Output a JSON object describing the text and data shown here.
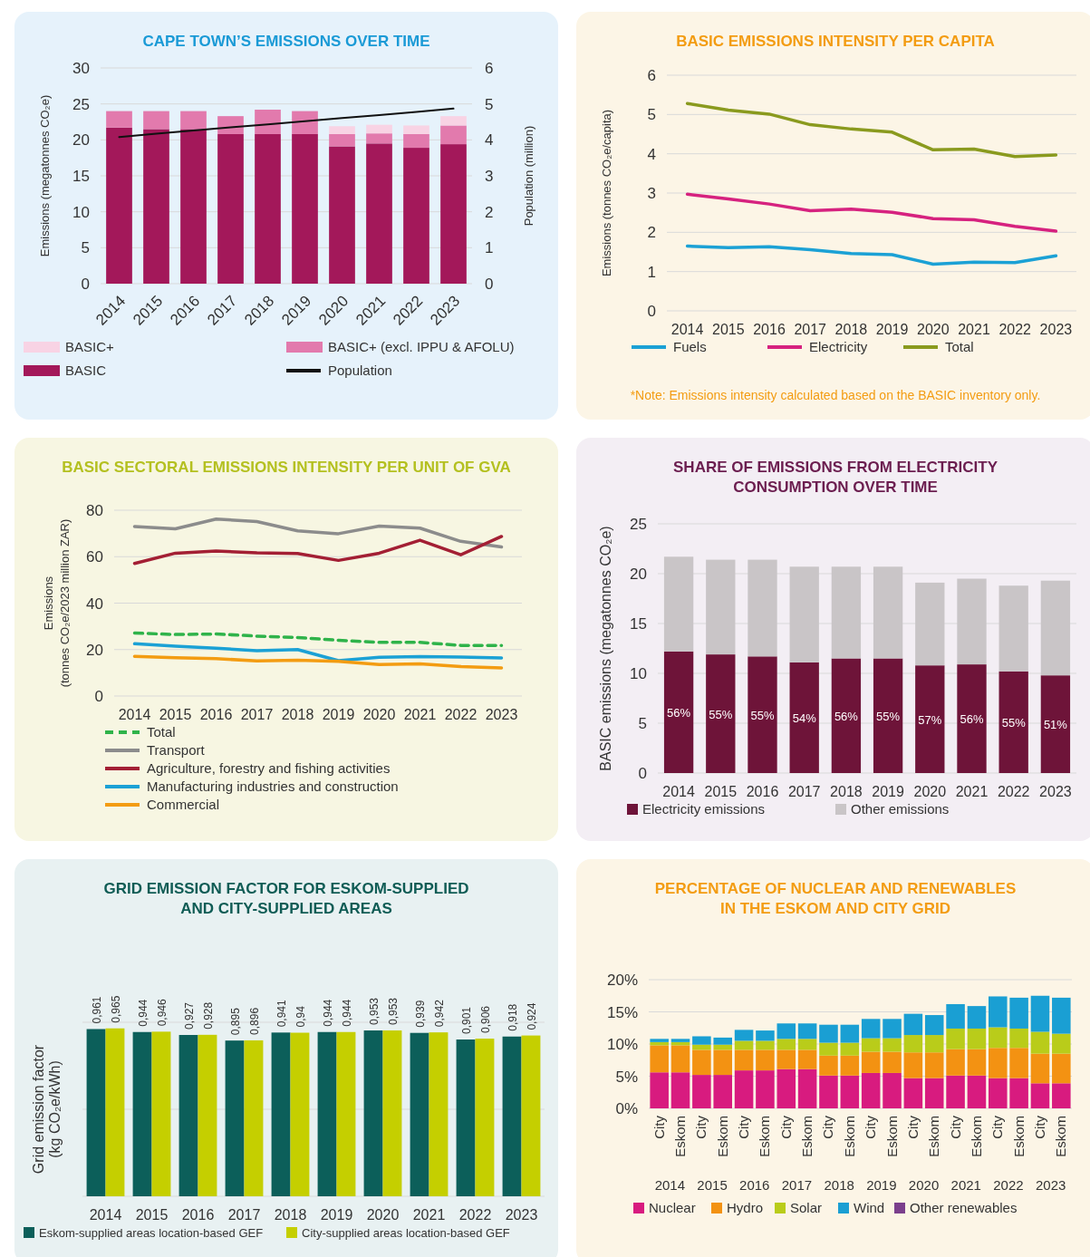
{
  "chart_data": [
    {
      "type": "bar",
      "title": "CAPE TOWN’S EMISSIONS OVER TIME",
      "ylabel": "Emissions (megatonnes CO₂e)",
      "y2label": "Population (million)",
      "categories": [
        "2014",
        "2015",
        "2016",
        "2017",
        "2018",
        "2019",
        "2020",
        "2021",
        "2022",
        "2023"
      ],
      "stacked": true,
      "ylim": [
        0,
        30
      ],
      "yticks": [
        0,
        5,
        10,
        15,
        20,
        25,
        30
      ],
      "y2lim": [
        0,
        6
      ],
      "y2ticks": [
        0,
        1,
        2,
        3,
        4,
        5,
        6
      ],
      "grid": "y",
      "legend": "bottom",
      "series": [
        {
          "name": "BASIC",
          "color": "#a3185a",
          "values": [
            21.7,
            21.5,
            21.5,
            20.8,
            20.8,
            20.8,
            19.1,
            19.5,
            18.9,
            19.4
          ]
        },
        {
          "name": "BASIC+ (excl. IPPU & AFOLU)",
          "color": "#e27aad",
          "values": [
            2.3,
            2.5,
            2.5,
            2.5,
            3.4,
            3.2,
            1.7,
            1.4,
            1.9,
            2.6
          ]
        },
        {
          "name": "BASIC+",
          "color": "#f8d3e4",
          "values": [
            null,
            null,
            null,
            null,
            null,
            null,
            1.1,
            1.2,
            1.2,
            1.3
          ]
        },
        {
          "name": "Population",
          "type": "line",
          "axis": "y2",
          "color": "#111111",
          "values": [
            4.08,
            4.17,
            4.26,
            4.35,
            4.43,
            4.52,
            4.61,
            4.69,
            4.78,
            4.87
          ]
        }
      ]
    },
    {
      "type": "line",
      "title": "BASIC EMISSIONS INTENSITY PER CAPITA",
      "ylabel": "Emissions (tonnes CO₂e/capita)",
      "categories": [
        "2014",
        "2015",
        "2016",
        "2017",
        "2018",
        "2019",
        "2020",
        "2021",
        "2022",
        "2023"
      ],
      "ylim": [
        0,
        6
      ],
      "yticks": [
        0,
        1,
        2,
        3,
        4,
        5,
        6
      ],
      "grid": "y",
      "legend": "bottom",
      "annotations": [
        "*Note: Emissions intensity calculated based on the BASIC inventory only."
      ],
      "series": [
        {
          "name": "Fuels",
          "color": "#1ba1d5",
          "values": [
            1.65,
            1.61,
            1.63,
            1.56,
            1.46,
            1.43,
            1.19,
            1.24,
            1.23,
            1.4
          ]
        },
        {
          "name": "Electricity",
          "color": "#d6227f",
          "values": [
            2.97,
            2.85,
            2.72,
            2.55,
            2.59,
            2.51,
            2.35,
            2.32,
            2.15,
            2.03
          ]
        },
        {
          "name": "Total",
          "color": "#8a9a1e",
          "values": [
            5.28,
            5.11,
            5.01,
            4.74,
            4.63,
            4.55,
            4.1,
            4.12,
            3.93,
            3.97
          ]
        }
      ]
    },
    {
      "type": "line",
      "title": "BASIC SECTORAL EMISSIONS INTENSITY PER UNIT OF GVA",
      "ylabel": "Emissions (tonnes CO₂e/2023 million ZAR)",
      "categories": [
        "2014",
        "2015",
        "2016",
        "2017",
        "2018",
        "2019",
        "2020",
        "2021",
        "2022",
        "2023"
      ],
      "ylim": [
        0,
        80
      ],
      "yticks": [
        0,
        20,
        40,
        60,
        80
      ],
      "grid": "y",
      "legend": "bottom",
      "series": [
        {
          "name": "Total",
          "color": "#2fb34a",
          "line_style": "dashed",
          "values": [
            27.1,
            26.5,
            26.7,
            25.8,
            25.2,
            24.0,
            23.1,
            23.1,
            21.8,
            21.8
          ]
        },
        {
          "name": "Transport",
          "color": "#8c8c8c",
          "values": [
            73.0,
            72.0,
            76.2,
            75.1,
            71.1,
            69.9,
            73.2,
            72.3,
            66.6,
            64.2
          ]
        },
        {
          "name": "Agriculture, forestry and fishing activities",
          "color": "#a31f34",
          "values": [
            57.1,
            61.5,
            62.4,
            61.7,
            61.4,
            58.4,
            61.5,
            67.1,
            60.8,
            68.7
          ]
        },
        {
          "name": "Manufacturing industries and construction",
          "color": "#1ba1d5",
          "values": [
            22.5,
            21.5,
            20.6,
            19.5,
            20.0,
            15.2,
            16.7,
            17.0,
            16.8,
            16.4
          ]
        },
        {
          "name": "Commercial",
          "color": "#f39c12",
          "values": [
            17.1,
            16.5,
            16.1,
            15.1,
            15.4,
            14.9,
            13.6,
            13.9,
            12.7,
            12.1
          ]
        }
      ]
    },
    {
      "type": "bar",
      "title": "SHARE OF EMISSIONS FROM ELECTRICITY CONSUMPTION OVER TIME",
      "ylabel": "BASIC emissions (megatonnes CO₂e)",
      "categories": [
        "2014",
        "2015",
        "2016",
        "2017",
        "2018",
        "2019",
        "2020",
        "2021",
        "2022",
        "2023"
      ],
      "stacked": true,
      "ylim": [
        0,
        25
      ],
      "yticks": [
        0,
        5,
        10,
        15,
        20,
        25
      ],
      "grid": "y",
      "legend": "bottom",
      "annotations": [
        "56%",
        "55%",
        "55%",
        "54%",
        "56%",
        "55%",
        "57%",
        "56%",
        "55%",
        "51%"
      ],
      "series": [
        {
          "name": "Electricity emissions",
          "color": "#6e1439",
          "values": [
            12.2,
            11.9,
            11.7,
            11.1,
            11.5,
            11.5,
            10.8,
            10.9,
            10.2,
            9.8
          ]
        },
        {
          "name": "Other emissions",
          "color": "#c9c5c7",
          "values": [
            9.5,
            9.5,
            9.7,
            9.6,
            9.2,
            9.2,
            8.3,
            8.6,
            8.6,
            9.5
          ]
        }
      ]
    },
    {
      "type": "bar",
      "title": "GRID EMISSION FACTOR FOR ESKOM-SUPPLIED AND CITY-SUPPLIED AREAS",
      "ylabel": "Grid emission factor (kg CO₂e/kWh)",
      "categories": [
        "2014",
        "2015",
        "2016",
        "2017",
        "2018",
        "2019",
        "2020",
        "2021",
        "2022",
        "2023"
      ],
      "ylim": [
        0,
        1
      ],
      "yticks": [
        {
          "value": 0,
          "label": null
        },
        {
          "value": 0.5,
          "label": null
        },
        {
          "value": 1,
          "label": null
        }
      ],
      "tick_labels": "x",
      "grid": "y",
      "legend": "bottom",
      "series": [
        {
          "name": "Eskom-supplied areas location-based GEF",
          "color": "#0c5f5a",
          "values": [
            0.961,
            0.944,
            0.927,
            0.895,
            0.941,
            0.944,
            0.953,
            0.939,
            0.901,
            0.918
          ],
          "value_labels": [
            "0,961",
            "0,944",
            "0,927",
            "0,895",
            "0,941",
            "0,944",
            "0,953",
            "0,939",
            "0,901",
            "0,918"
          ]
        },
        {
          "name": "City-supplied areas location-based GEF",
          "color": "#c5cf00",
          "values": [
            0.965,
            0.946,
            0.928,
            0.896,
            0.94,
            0.944,
            0.953,
            0.942,
            0.906,
            0.924
          ],
          "value_labels": [
            "0,965",
            "0,946",
            "0,928",
            "0,896",
            "0,94",
            "0,944",
            "0,953",
            "0,942",
            "0,906",
            "0,924"
          ]
        }
      ]
    },
    {
      "type": "bar",
      "title": "PERCENTAGE OF NUCLEAR AND RENEWABLES IN THE ESKOM AND CITY GRID",
      "categories": [
        "City",
        "Eskom",
        "City",
        "Eskom",
        "City",
        "Eskom",
        "City",
        "Eskom",
        "City",
        "Eskom",
        "City",
        "Eskom",
        "City",
        "Eskom",
        "City",
        "Eskom",
        "City",
        "Eskom",
        "City",
        "Eskom"
      ],
      "annotations": [
        "2014",
        "2015",
        "2016",
        "2017",
        "2018",
        "2019",
        "2020",
        "2021",
        "2022",
        "2023"
      ],
      "stacked": true,
      "ylim": [
        0,
        20
      ],
      "yticks": [
        {
          "value": 0,
          "label": "0%"
        },
        {
          "value": 5,
          "label": "5%"
        },
        {
          "value": 10,
          "label": "10%"
        },
        {
          "value": 15,
          "label": "15%"
        },
        {
          "value": 20,
          "label": "20%"
        }
      ],
      "grid": "y",
      "legend": "bottom",
      "series": [
        {
          "name": "Nuclear",
          "color": "#d81b7f",
          "values": [
            5.6,
            5.6,
            5.2,
            5.2,
            5.9,
            5.9,
            6.1,
            6.1,
            5.1,
            5.1,
            5.5,
            5.5,
            4.7,
            4.7,
            5.1,
            5.1,
            4.7,
            4.7,
            3.9,
            3.9
          ]
        },
        {
          "name": "Hydro",
          "color": "#f39212",
          "values": [
            4.2,
            4.2,
            3.9,
            3.9,
            3.2,
            3.2,
            3.0,
            3.0,
            3.1,
            3.1,
            3.3,
            3.3,
            4.0,
            4.0,
            4.1,
            4.1,
            4.7,
            4.7,
            4.6,
            4.6
          ]
        },
        {
          "name": "Solar",
          "color": "#b9cc1a",
          "values": [
            0.5,
            0.5,
            0.8,
            0.8,
            1.4,
            1.4,
            1.7,
            1.7,
            2.0,
            2.0,
            2.1,
            2.1,
            2.7,
            2.7,
            3.2,
            3.2,
            3.2,
            3.0,
            3.4,
            3.1
          ]
        },
        {
          "name": "Wind",
          "color": "#1a9fd3",
          "values": [
            0.5,
            0.5,
            1.3,
            1.1,
            1.7,
            1.6,
            2.4,
            2.4,
            2.8,
            2.8,
            3.0,
            3.0,
            3.3,
            3.1,
            3.8,
            3.5,
            4.8,
            4.8,
            5.6,
            5.6
          ]
        },
        {
          "name": "Other renewables",
          "color": "#7b3f8c",
          "values": [
            null,
            null,
            null,
            null,
            null,
            null,
            null,
            null,
            null,
            null,
            null,
            null,
            null,
            null,
            null,
            null,
            null,
            null,
            null,
            null
          ]
        }
      ]
    }
  ]
}
